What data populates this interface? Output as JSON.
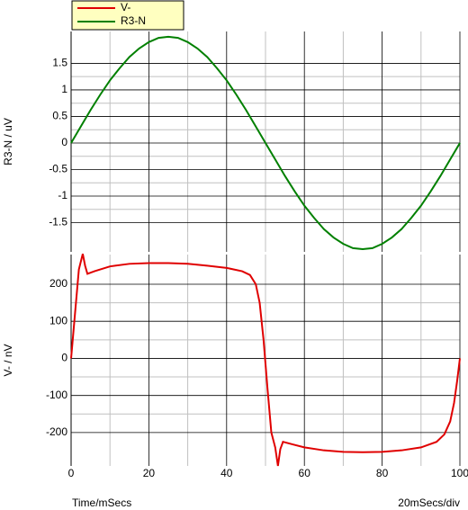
{
  "chart_data": [
    {
      "type": "line",
      "ylabel": "R3-N / uV",
      "x": [
        0,
        2.5,
        5,
        7.5,
        10,
        12.5,
        15,
        17.5,
        20,
        22.5,
        25,
        27.5,
        30,
        32.5,
        35,
        37.5,
        40,
        42.5,
        45,
        47.5,
        50,
        52.5,
        55,
        57.5,
        60,
        62.5,
        65,
        67.5,
        70,
        72.5,
        75,
        77.5,
        80,
        82.5,
        85,
        87.5,
        90,
        92.5,
        95,
        97.5,
        100
      ],
      "series": [
        {
          "name": "R3-N",
          "color": "#008000",
          "values": [
            0,
            0.31,
            0.62,
            0.91,
            1.18,
            1.41,
            1.62,
            1.78,
            1.9,
            1.98,
            2,
            1.98,
            1.9,
            1.78,
            1.62,
            1.41,
            1.18,
            0.91,
            0.62,
            0.31,
            0,
            -0.31,
            -0.62,
            -0.91,
            -1.18,
            -1.41,
            -1.62,
            -1.78,
            -1.9,
            -1.98,
            -2,
            -1.98,
            -1.9,
            -1.78,
            -1.62,
            -1.41,
            -1.18,
            -0.91,
            -0.62,
            -0.31,
            0
          ]
        }
      ],
      "xlim": [
        0,
        100
      ],
      "ylim": [
        -2.05,
        2.1
      ],
      "yticks": [
        1.5,
        1,
        0.5,
        0,
        -0.5,
        -1,
        -1.5
      ],
      "grid": true
    },
    {
      "type": "line",
      "ylabel": "V- / nV",
      "xlabel": "Time/mSecs",
      "annotation": "20mSecs/div",
      "x": [
        0,
        1,
        2,
        3,
        3.6,
        4.2,
        6,
        10,
        15,
        20,
        25,
        30,
        35,
        40,
        44,
        46,
        47.5,
        48.5,
        49.5,
        50.5,
        51.5,
        52.5,
        53.2,
        53.8,
        54.5,
        57,
        60,
        65,
        70,
        75,
        80,
        85,
        90,
        94,
        96,
        97.5,
        98.5,
        99.3,
        100
      ],
      "series": [
        {
          "name": "V-",
          "color": "#e00000",
          "values": [
            0,
            120,
            240,
            282,
            250,
            228,
            235,
            248,
            255,
            257,
            257,
            255,
            250,
            244,
            235,
            225,
            200,
            150,
            50,
            -80,
            -200,
            -240,
            -290,
            -245,
            -225,
            -232,
            -240,
            -248,
            -252,
            -253,
            -252,
            -248,
            -240,
            -225,
            -205,
            -170,
            -120,
            -60,
            0
          ]
        }
      ],
      "xlim": [
        0,
        100
      ],
      "xticks": [
        0,
        20,
        40,
        60,
        80,
        100
      ],
      "ylim": [
        -290,
        280
      ],
      "yticks": [
        200,
        100,
        0,
        -100,
        -200
      ],
      "grid": true
    }
  ]
}
